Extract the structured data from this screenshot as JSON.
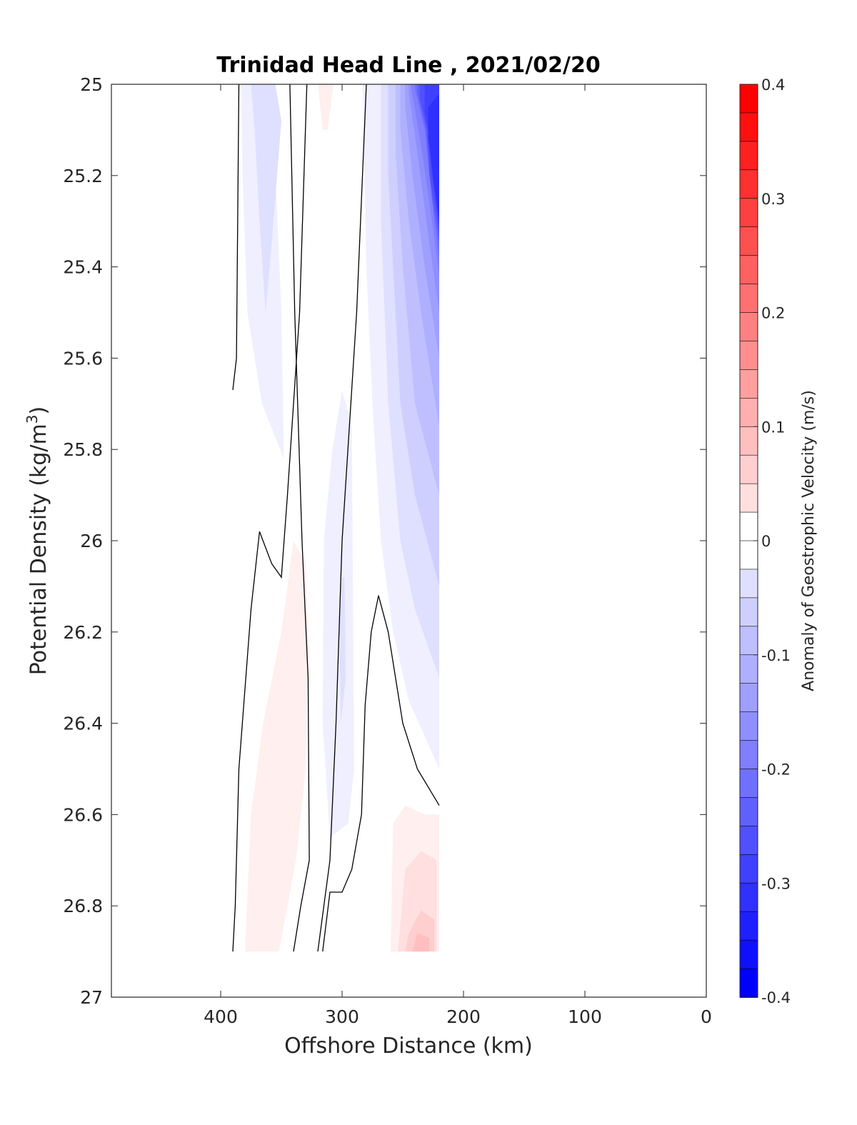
{
  "chart_data": {
    "type": "heatmap",
    "title": "Trinidad Head Line , 2021/02/20",
    "xlabel": "Offshore Distance (km)",
    "ylabel": "Potential Density (kg/m3)",
    "ylabel_main": "Potential Density (kg/m",
    "ylabel_sup": "3",
    "ylabel_close": ")",
    "xlim": [
      490,
      0
    ],
    "ylim": [
      25,
      27
    ],
    "x_reversed": true,
    "y_reversed": true,
    "xticks": [
      400,
      300,
      200,
      100,
      0
    ],
    "xtick_labels": [
      "400",
      "300",
      "200",
      "100",
      "0"
    ],
    "yticks": [
      25,
      25.2,
      25.4,
      25.6,
      25.8,
      26,
      26.2,
      26.4,
      26.6,
      26.8,
      27
    ],
    "ytick_labels": [
      "25",
      "25.2",
      "25.4",
      "25.6",
      "25.8",
      "26",
      "26.2",
      "26.4",
      "26.6",
      "26.8",
      "27"
    ],
    "colorbar": {
      "label": "Anomaly of Geostrophic Velocity (m/s)",
      "range": [
        -0.4,
        0.4
      ],
      "step": 0.025,
      "ticks": [
        0.4,
        0.3,
        0.2,
        0.1,
        0,
        -0.1,
        -0.2,
        -0.3,
        -0.4
      ],
      "tick_labels": [
        "0.4",
        "0.3",
        "0.2",
        "0.1",
        "0",
        "-0.1",
        "-0.2",
        "-0.3",
        "-0.4"
      ],
      "colormap": "blue-white-red",
      "min_color": "#0000ff",
      "max_color": "#ff0000"
    },
    "contours_zero": [
      {
        "name": "zero-contour-1",
        "points": [
          [
            385,
            25
          ],
          [
            387,
            25.6
          ],
          [
            390,
            25.67
          ]
        ]
      },
      {
        "name": "zero-contour-2",
        "points": [
          [
            329,
            25
          ],
          [
            335,
            25.5
          ],
          [
            345,
            25.9
          ],
          [
            350,
            26.08
          ],
          [
            358,
            26.05
          ],
          [
            368,
            25.98
          ],
          [
            375,
            26.15
          ],
          [
            385,
            26.5
          ],
          [
            388,
            26.8
          ],
          [
            390,
            26.9
          ]
        ]
      },
      {
        "name": "zero-contour-3",
        "points": [
          [
            343,
            25
          ],
          [
            339,
            25.5
          ],
          [
            333,
            26
          ],
          [
            328,
            26.3
          ],
          [
            327,
            26.7
          ],
          [
            334,
            26.8
          ],
          [
            340,
            26.9
          ]
        ]
      },
      {
        "name": "zero-contour-4",
        "points": [
          [
            280,
            25
          ],
          [
            288,
            25.5
          ],
          [
            300,
            26
          ],
          [
            305,
            26.4
          ],
          [
            310,
            26.7
          ],
          [
            315,
            26.8
          ],
          [
            320,
            26.9
          ]
        ]
      },
      {
        "name": "zero-contour-5",
        "points": [
          [
            220,
            26.58
          ],
          [
            238,
            26.5
          ],
          [
            250,
            26.4
          ],
          [
            262,
            26.2
          ],
          [
            270,
            26.12
          ],
          [
            276,
            26.2
          ],
          [
            281,
            26.36
          ],
          [
            284,
            26.6
          ],
          [
            292,
            26.72
          ],
          [
            300,
            26.77
          ],
          [
            310,
            26.77
          ],
          [
            316,
            26.9
          ]
        ]
      }
    ],
    "regions": [
      {
        "name": "negative-band-offshore",
        "value": -0.025,
        "points": [
          [
            383,
            25
          ],
          [
            358,
            25
          ],
          [
            350,
            25.5
          ],
          [
            348,
            25.82
          ],
          [
            366,
            25.7
          ],
          [
            378,
            25.5
          ],
          [
            382,
            25.2
          ]
        ]
      },
      {
        "name": "negative-core-offshore",
        "value": -0.05,
        "points": [
          [
            375,
            25
          ],
          [
            355,
            25
          ],
          [
            350,
            25.08
          ],
          [
            358,
            25.35
          ],
          [
            363,
            25.5
          ],
          [
            368,
            25.3
          ],
          [
            372,
            25.1
          ]
        ]
      },
      {
        "name": "negative-band-mid",
        "value": -0.025,
        "points": [
          [
            300,
            25.67
          ],
          [
            292,
            25.75
          ],
          [
            290,
            26.5
          ],
          [
            295,
            26.62
          ],
          [
            310,
            26.65
          ],
          [
            316,
            26.4
          ],
          [
            315,
            26.0
          ],
          [
            308,
            25.8
          ]
        ]
      },
      {
        "name": "negative-core-mid",
        "value": -0.05,
        "points": [
          [
            298,
            26.08
          ],
          [
            300,
            26.08
          ],
          [
            302,
            26.2
          ],
          [
            301,
            26.4
          ],
          [
            297,
            26.3
          ]
        ]
      },
      {
        "name": "positive-band-1",
        "value": 0.025,
        "points": [
          [
            340,
            26.0
          ],
          [
            330,
            26.05
          ],
          [
            328,
            26.2
          ],
          [
            330,
            26.5
          ],
          [
            338,
            26.7
          ],
          [
            352,
            26.9
          ],
          [
            380,
            26.9
          ],
          [
            375,
            26.6
          ],
          [
            365,
            26.4
          ],
          [
            350,
            26.2
          ],
          [
            345,
            26.1
          ]
        ]
      },
      {
        "name": "positive-band-2",
        "value": 0.025,
        "points": [
          [
            320,
            25
          ],
          [
            307,
            25
          ],
          [
            312,
            25.1
          ],
          [
            316,
            25.1
          ],
          [
            318,
            25.05
          ]
        ]
      },
      {
        "name": "positive-band-3",
        "value": 0.025,
        "points": [
          [
            220,
            26.6
          ],
          [
            232,
            26.6
          ],
          [
            248,
            26.58
          ],
          [
            258,
            26.62
          ],
          [
            260,
            26.9
          ],
          [
            220,
            26.9
          ]
        ]
      },
      {
        "name": "positive-band-4",
        "value": 0.05,
        "points": [
          [
            222,
            26.7
          ],
          [
            235,
            26.68
          ],
          [
            248,
            26.72
          ],
          [
            254,
            26.9
          ],
          [
            222,
            26.9
          ]
        ]
      },
      {
        "name": "positive-band-5",
        "value": 0.075,
        "points": [
          [
            224,
            26.83
          ],
          [
            235,
            26.81
          ],
          [
            245,
            26.86
          ],
          [
            248,
            26.9
          ],
          [
            224,
            26.9
          ]
        ]
      },
      {
        "name": "positive-band-6",
        "value": 0.1,
        "points": [
          [
            228,
            26.87
          ],
          [
            238,
            26.86
          ],
          [
            242,
            26.9
          ],
          [
            228,
            26.9
          ]
        ]
      }
    ],
    "negative_gradient": {
      "name": "nearshore-negative-gradient",
      "note": "strong southward anomaly near 220-280 km, top layers",
      "levels": [
        {
          "value": -0.025,
          "points": [
            [
              283,
              25
            ],
            [
              220,
              25
            ],
            [
              220,
              26.5
            ],
            [
              245,
              26.35
            ],
            [
              258,
              26.2
            ],
            [
              268,
              26.0
            ],
            [
              275,
              25.7
            ],
            [
              280,
              25.4
            ]
          ]
        },
        {
          "value": -0.05,
          "points": [
            [
              268,
              25
            ],
            [
              220,
              25
            ],
            [
              220,
              26.3
            ],
            [
              240,
              26.15
            ],
            [
              252,
              26.0
            ],
            [
              262,
              25.7
            ],
            [
              268,
              25.3
            ]
          ]
        },
        {
          "value": -0.075,
          "points": [
            [
              262,
              25
            ],
            [
              220,
              25
            ],
            [
              220,
              26.1
            ],
            [
              240,
              25.9
            ],
            [
              252,
              25.7
            ],
            [
              258,
              25.4
            ],
            [
              262,
              25.2
            ]
          ]
        },
        {
          "value": -0.1,
          "points": [
            [
              256,
              25
            ],
            [
              220,
              25
            ],
            [
              220,
              25.9
            ],
            [
              240,
              25.7
            ],
            [
              250,
              25.4
            ],
            [
              256,
              25.15
            ]
          ]
        },
        {
          "value": -0.125,
          "points": [
            [
              252,
              25
            ],
            [
              220,
              25
            ],
            [
              220,
              25.75
            ],
            [
              235,
              25.5
            ],
            [
              245,
              25.3
            ],
            [
              252,
              25.1
            ]
          ]
        },
        {
          "value": -0.15,
          "points": [
            [
              248,
              25
            ],
            [
              220,
              25
            ],
            [
              220,
              25.6
            ],
            [
              232,
              25.4
            ],
            [
              242,
              25.2
            ],
            [
              248,
              25.05
            ]
          ]
        },
        {
          "value": -0.175,
          "points": [
            [
              245,
              25
            ],
            [
              220,
              25
            ],
            [
              220,
              25.5
            ],
            [
              228,
              25.35
            ],
            [
              238,
              25.15
            ],
            [
              245,
              25.02
            ]
          ]
        },
        {
          "value": -0.2,
          "points": [
            [
              243,
              25
            ],
            [
              220,
              25
            ],
            [
              220,
              25.42
            ],
            [
              226,
              25.3
            ],
            [
              234,
              25.15
            ],
            [
              243,
              25.01
            ]
          ]
        },
        {
          "value": -0.225,
          "points": [
            [
              240,
              25
            ],
            [
              220,
              25
            ],
            [
              220,
              25.38
            ],
            [
              224,
              25.3
            ],
            [
              232,
              25.1
            ],
            [
              240,
              25.01
            ]
          ]
        },
        {
          "value": -0.25,
          "points": [
            [
              238,
              25
            ],
            [
              220,
              25
            ],
            [
              220,
              25.35
            ],
            [
              226,
              25.25
            ],
            [
              231,
              25.1
            ],
            [
              238,
              25.02
            ]
          ]
        },
        {
          "value": -0.275,
          "points": [
            [
              236,
              25
            ],
            [
              220,
              25
            ],
            [
              220,
              25.33
            ],
            [
              228,
              25.2
            ],
            [
              230,
              25.1
            ],
            [
              236,
              25.03
            ]
          ]
        },
        {
          "value": -0.3,
          "points": [
            [
              232,
              25
            ],
            [
              220,
              25
            ],
            [
              220,
              25.31
            ],
            [
              226,
              25.2
            ],
            [
              229,
              25.1
            ],
            [
              232,
              25.06
            ]
          ]
        },
        {
          "value": -0.325,
          "points": [
            [
              229,
              25.05
            ],
            [
              220,
              25.02
            ],
            [
              220,
              25.3
            ],
            [
              224,
              25.22
            ],
            [
              229,
              25.12
            ]
          ]
        }
      ]
    }
  }
}
